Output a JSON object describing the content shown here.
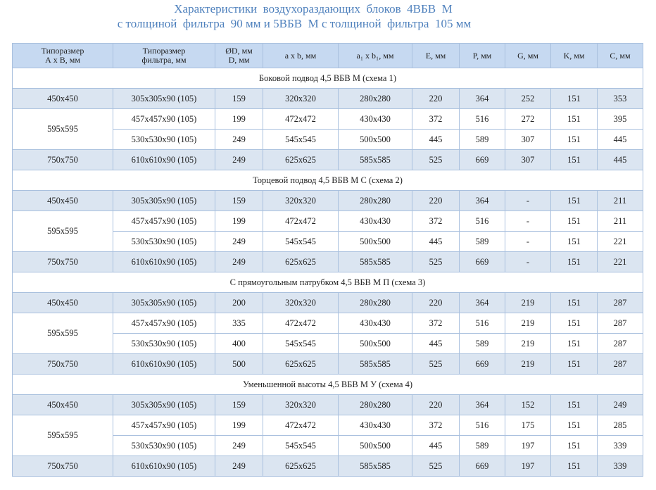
{
  "header": {
    "title_line1": "Характеристики  воздухораздающих  блоков  4ВБВ  М",
    "title_line2": "с толщиной  фильтра  90 мм и 5ВБВ  М с толщиной  фильтра  105 мм"
  },
  "table": {
    "columns": [
      "Типоразмер\nА х В, мм",
      "Типоразмер\nфильтра, мм",
      "ØD, мм\nD, мм",
      "a x b, мм",
      "a₁ x b₁, мм",
      "E, мм",
      "P, мм",
      "G, мм",
      "K, мм",
      "C, мм"
    ],
    "sections": [
      {
        "title": "Боковой подвод  4,5 ВБВ М (схема 1)",
        "groups": [
          {
            "size": "450x450",
            "rows": [
              [
                "305x305x90 (105)",
                159,
                "320x320",
                "280x280",
                220,
                364,
                252,
                151,
                353
              ]
            ]
          },
          {
            "size": "595x595",
            "rows": [
              [
                "457x457x90 (105)",
                199,
                "472x472",
                "430x430",
                372,
                516,
                272,
                151,
                395
              ],
              [
                "530x530x90 (105)",
                249,
                "545x545",
                "500x500",
                445,
                589,
                307,
                151,
                445
              ]
            ]
          },
          {
            "size": "750x750",
            "rows": [
              [
                "610x610x90 (105)",
                249,
                "625x625",
                "585x585",
                525,
                669,
                307,
                151,
                445
              ]
            ]
          }
        ]
      },
      {
        "title": "Торцевой  подвод  4,5 ВБВ М С (схема 2)",
        "groups": [
          {
            "size": "450x450",
            "rows": [
              [
                "305x305x90 (105)",
                159,
                "320x320",
                "280x280",
                220,
                364,
                "-",
                151,
                211
              ]
            ]
          },
          {
            "size": "595x595",
            "rows": [
              [
                "457x457x90 (105)",
                199,
                "472x472",
                "430x430",
                372,
                516,
                "-",
                151,
                211
              ],
              [
                "530x530x90 (105)",
                249,
                "545x545",
                "500x500",
                445,
                589,
                "-",
                151,
                221
              ]
            ]
          },
          {
            "size": "750x750",
            "rows": [
              [
                "610x610x90 (105)",
                249,
                "625x625",
                "585x585",
                525,
                669,
                "-",
                151,
                221
              ]
            ]
          }
        ]
      },
      {
        "title": "С прямоугольным  патрубком 4,5 ВБВ М П (схема 3)",
        "groups": [
          {
            "size": "450x450",
            "rows": [
              [
                "305x305x90 (105)",
                200,
                "320x320",
                "280x280",
                220,
                364,
                219,
                151,
                287
              ]
            ]
          },
          {
            "size": "595x595",
            "rows": [
              [
                "457x457x90 (105)",
                335,
                "472x472",
                "430x430",
                372,
                516,
                219,
                151,
                287
              ],
              [
                "530x530x90 (105)",
                400,
                "545x545",
                "500x500",
                445,
                589,
                219,
                151,
                287
              ]
            ]
          },
          {
            "size": "750x750",
            "rows": [
              [
                "610x610x90 (105)",
                500,
                "625x625",
                "585x585",
                525,
                669,
                219,
                151,
                287
              ]
            ]
          }
        ]
      },
      {
        "title": "Уменьшенной высоты 4,5 ВБВ М У (схема 4)",
        "groups": [
          {
            "size": "450x450",
            "rows": [
              [
                "305x305x90 (105)",
                159,
                "320x320",
                "280x280",
                220,
                364,
                152,
                151,
                249
              ]
            ]
          },
          {
            "size": "595x595",
            "rows": [
              [
                "457x457x90 (105)",
                199,
                "472x472",
                "430x430",
                372,
                516,
                175,
                151,
                285
              ],
              [
                "530x530x90 (105)",
                249,
                "545x545",
                "500x500",
                445,
                589,
                197,
                151,
                339
              ]
            ]
          },
          {
            "size": "750x750",
            "rows": [
              [
                "610x610x90 (105)",
                249,
                "625x625",
                "585x585",
                525,
                669,
                197,
                151,
                339
              ]
            ]
          }
        ]
      }
    ]
  }
}
